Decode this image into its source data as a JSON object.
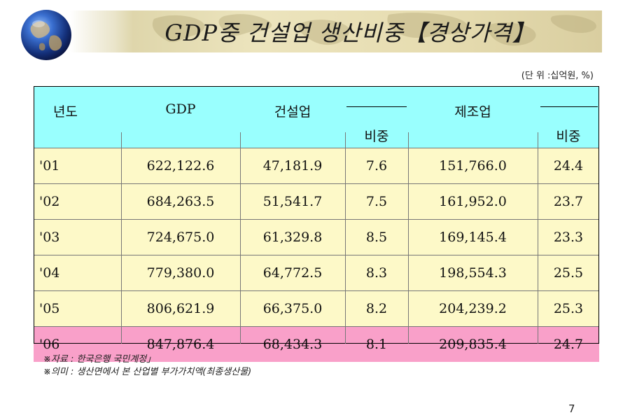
{
  "title": "GDP중 건설업 생산비중【경상가격】",
  "unit_note": "(단 위 :십억원, %)",
  "table": {
    "headers": {
      "year": "년도",
      "gdp": "GDP",
      "construction": "건설업",
      "construction_share": "비중",
      "manufacturing": "제조업",
      "manufacturing_share": "비중"
    },
    "rows": [
      {
        "year": "'01",
        "gdp": "622,122.6",
        "construction": "47,181.9",
        "construction_share": "7.6",
        "manufacturing": "151,766.0",
        "manufacturing_share": "24.4"
      },
      {
        "year": "'02",
        "gdp": "684,263.5",
        "construction": "51,541.7",
        "construction_share": "7.5",
        "manufacturing": "161,952.0",
        "manufacturing_share": "23.7"
      },
      {
        "year": "'03",
        "gdp": "724,675.0",
        "construction": "61,329.8",
        "construction_share": "8.5",
        "manufacturing": "169,145.4",
        "manufacturing_share": "23.3"
      },
      {
        "year": "'04",
        "gdp": "779,380.0",
        "construction": "64,772.5",
        "construction_share": "8.3",
        "manufacturing": "198,554.3",
        "manufacturing_share": "25.5"
      },
      {
        "year": "'05",
        "gdp": "806,621.9",
        "construction": "66,375.0",
        "construction_share": "8.2",
        "manufacturing": "204,239.2",
        "manufacturing_share": "25.3"
      },
      {
        "year": "'06",
        "gdp": "847,876.4",
        "construction": "68,434.3",
        "construction_share": "8.1",
        "manufacturing": "209,835.4",
        "manufacturing_share": "24.7"
      }
    ],
    "highlight_row_index": 5,
    "colors": {
      "header_bg": "#99fffe",
      "row_bg": "#fdf9c8",
      "highlight_bg": "#f9a0c9"
    }
  },
  "notes": [
    "※자료 : 한국은행 국민계정」",
    "※의미 : 생산면에서 본 산업별 부가가치액(최종생산물)"
  ],
  "page_number": "7",
  "decorations": {
    "globe_icon": "globe-icon",
    "banner_map": "world-map-decoration"
  }
}
